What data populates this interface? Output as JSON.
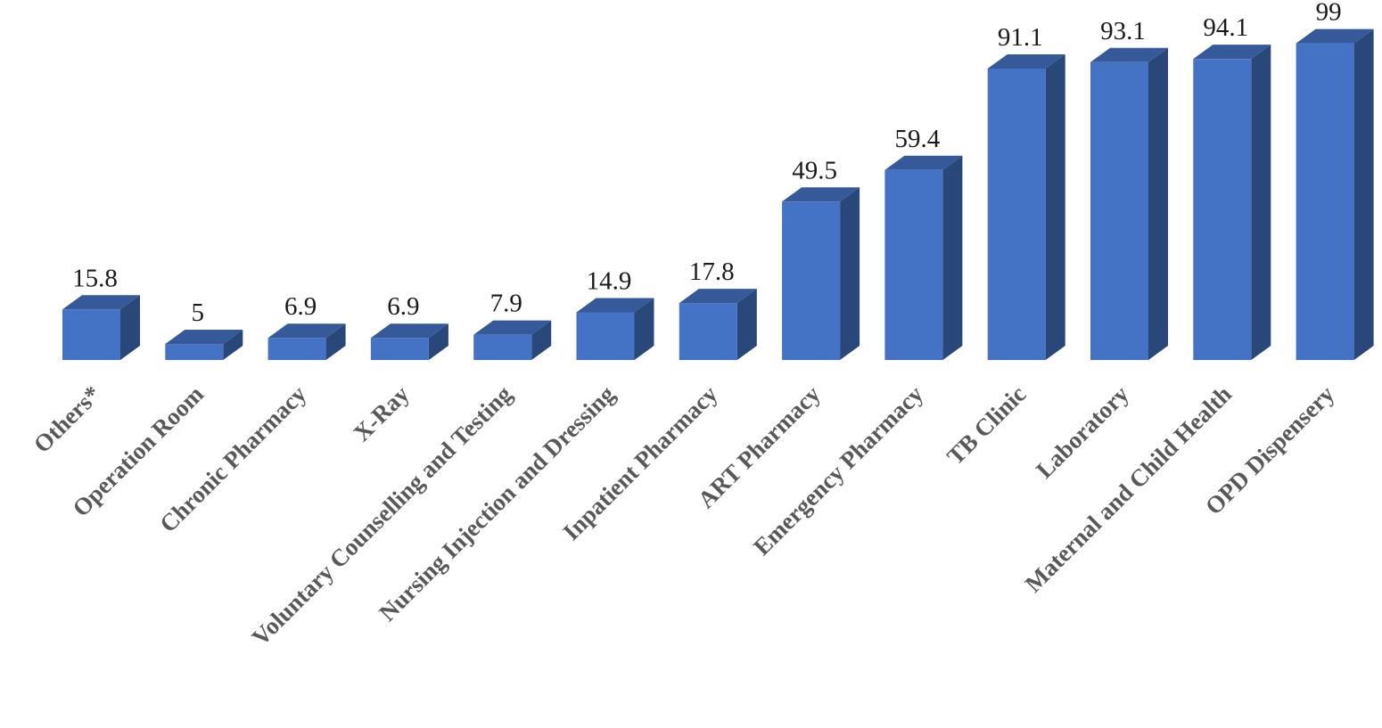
{
  "chart_data": {
    "type": "bar3d",
    "categories": [
      "Others*",
      "Operation Room",
      "Chronic Pharmacy",
      "X-Ray",
      "Voluntary Counselling and Testing",
      "Nursing Injection and Dressing",
      "Inpatient Pharmacy",
      "ART Pharmacy",
      "Emergency Pharmacy",
      "TB Clinic",
      "Laboratory",
      "Maternal and Child Health",
      "OPD Dispensery"
    ],
    "values": [
      15.8,
      5,
      6.9,
      6.9,
      7.9,
      14.9,
      17.8,
      49.5,
      59.4,
      91.1,
      93.1,
      94.1,
      99
    ],
    "color": "#4472c4"
  }
}
